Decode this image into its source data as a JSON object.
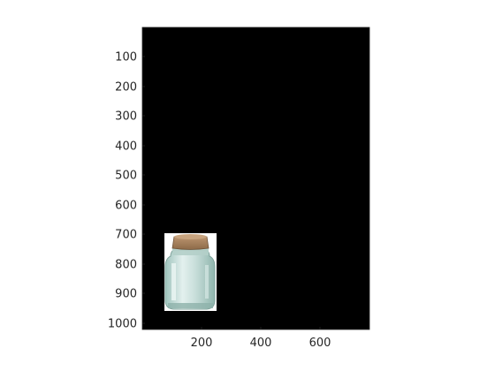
{
  "figure": {
    "background_color": "#ffffff",
    "image_background_color": "#000000"
  },
  "axes": {
    "x_range": [
      1,
      768
    ],
    "y_range": [
      1,
      1024
    ],
    "y_reversed": true,
    "x_ticks": [
      "200",
      "400",
      "600"
    ],
    "y_ticks": [
      "100",
      "200",
      "300",
      "400",
      "500",
      "600",
      "700",
      "800",
      "900",
      "1000"
    ]
  },
  "image": {
    "content": "jar-with-cork-icon",
    "object_extent_x": [
      76,
      250
    ],
    "object_extent_y": [
      700,
      960
    ]
  }
}
